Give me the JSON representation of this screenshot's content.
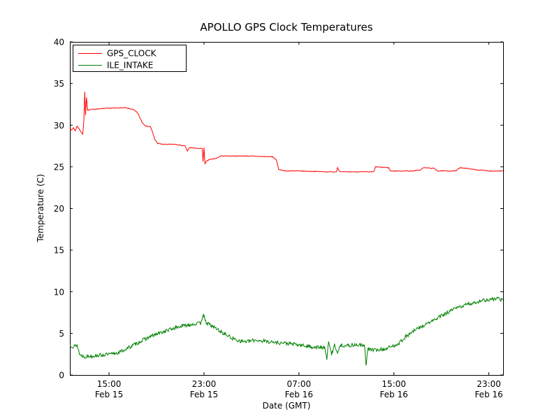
{
  "chart_data": {
    "type": "line",
    "title": "APOLLO GPS Clock Temperatures",
    "xlabel": "Date (GMT)",
    "ylabel": "Temperature (C)",
    "xlim": [
      11.7,
      48.2
    ],
    "ylim": [
      0,
      40
    ],
    "x_unit": "hours since Feb 15 00:00 GMT",
    "grid": false,
    "legend_position": "upper left",
    "yticks": [
      {
        "value": 0,
        "label": "0"
      },
      {
        "value": 5,
        "label": "5"
      },
      {
        "value": 10,
        "label": "10"
      },
      {
        "value": 15,
        "label": "15"
      },
      {
        "value": 20,
        "label": "20"
      },
      {
        "value": 25,
        "label": "25"
      },
      {
        "value": 30,
        "label": "30"
      },
      {
        "value": 35,
        "label": "35"
      },
      {
        "value": 40,
        "label": "40"
      }
    ],
    "xticks": [
      {
        "value": 15,
        "label": [
          "15:00",
          "Feb 15"
        ]
      },
      {
        "value": 23,
        "label": [
          "23:00",
          "Feb 15"
        ]
      },
      {
        "value": 31,
        "label": [
          "07:00",
          "Feb 16"
        ]
      },
      {
        "value": 39,
        "label": [
          "15:00",
          "Feb 16"
        ]
      },
      {
        "value": 47,
        "label": [
          "23:00",
          "Feb 16"
        ]
      }
    ],
    "series": [
      {
        "name": "GPS_CLOCK",
        "color": "#ff0000",
        "noise": 0.04,
        "seed": 7,
        "anchors": [
          [
            11.7,
            29.6
          ],
          [
            11.85,
            29.4
          ],
          [
            12.0,
            29.7
          ],
          [
            12.15,
            29.3
          ],
          [
            12.3,
            29.9
          ],
          [
            12.5,
            29.5
          ],
          [
            12.65,
            29.2
          ],
          [
            12.78,
            28.9
          ],
          [
            12.88,
            30.5
          ],
          [
            12.95,
            34.0
          ],
          [
            13.02,
            31.2
          ],
          [
            13.1,
            33.3
          ],
          [
            13.2,
            31.8
          ],
          [
            13.5,
            31.9
          ],
          [
            14.5,
            32.0
          ],
          [
            16.3,
            32.1
          ],
          [
            17.0,
            31.9
          ],
          [
            17.4,
            31.5
          ],
          [
            17.8,
            30.3
          ],
          [
            18.1,
            29.9
          ],
          [
            18.5,
            29.8
          ],
          [
            18.7,
            29.0
          ],
          [
            18.85,
            28.3
          ],
          [
            19.1,
            27.8
          ],
          [
            19.6,
            27.7
          ],
          [
            20.5,
            27.7
          ],
          [
            21.4,
            27.5
          ],
          [
            21.6,
            26.9
          ],
          [
            21.8,
            27.3
          ],
          [
            22.6,
            27.2
          ],
          [
            22.85,
            27.2
          ],
          [
            22.92,
            25.6
          ],
          [
            23.0,
            27.3
          ],
          [
            23.08,
            25.3
          ],
          [
            23.2,
            25.7
          ],
          [
            23.5,
            25.9
          ],
          [
            24.0,
            26.0
          ],
          [
            24.4,
            26.3
          ],
          [
            26.5,
            26.3
          ],
          [
            28.8,
            26.2
          ],
          [
            29.1,
            25.8
          ],
          [
            29.3,
            24.7
          ],
          [
            29.8,
            24.5
          ],
          [
            31.0,
            24.5
          ],
          [
            33.5,
            24.4
          ],
          [
            34.15,
            24.4
          ],
          [
            34.25,
            24.9
          ],
          [
            34.45,
            24.4
          ],
          [
            36.5,
            24.4
          ],
          [
            37.3,
            24.4
          ],
          [
            37.45,
            25.0
          ],
          [
            38.55,
            24.9
          ],
          [
            38.7,
            24.5
          ],
          [
            40.5,
            24.5
          ],
          [
            41.2,
            24.6
          ],
          [
            41.5,
            24.9
          ],
          [
            42.4,
            24.8
          ],
          [
            42.7,
            24.5
          ],
          [
            44.2,
            24.5
          ],
          [
            44.6,
            24.9
          ],
          [
            45.2,
            24.8
          ],
          [
            46.2,
            24.6
          ],
          [
            47.2,
            24.5
          ],
          [
            48.2,
            24.5
          ]
        ]
      },
      {
        "name": "ILE_INTAKE",
        "color": "#008000",
        "noise": 0.22,
        "seed": 13,
        "anchors": [
          [
            11.7,
            3.6
          ],
          [
            12.0,
            3.4
          ],
          [
            12.3,
            3.6
          ],
          [
            12.55,
            2.4
          ],
          [
            13.0,
            2.2
          ],
          [
            13.6,
            2.3
          ],
          [
            14.3,
            2.4
          ],
          [
            15.2,
            2.5
          ],
          [
            15.8,
            2.7
          ],
          [
            16.4,
            3.1
          ],
          [
            17.2,
            3.7
          ],
          [
            18.0,
            4.3
          ],
          [
            18.8,
            4.8
          ],
          [
            19.6,
            5.2
          ],
          [
            20.4,
            5.6
          ],
          [
            21.2,
            5.9
          ],
          [
            22.0,
            6.1
          ],
          [
            22.7,
            6.2
          ],
          [
            22.95,
            7.4
          ],
          [
            23.1,
            6.4
          ],
          [
            23.4,
            6.1
          ],
          [
            23.9,
            5.7
          ],
          [
            24.4,
            5.2
          ],
          [
            24.9,
            4.8
          ],
          [
            25.4,
            4.4
          ],
          [
            26.0,
            4.1
          ],
          [
            26.6,
            4.0
          ],
          [
            27.3,
            4.2
          ],
          [
            28.0,
            4.1
          ],
          [
            29.0,
            3.9
          ],
          [
            30.0,
            3.8
          ],
          [
            31.0,
            3.6
          ],
          [
            32.0,
            3.4
          ],
          [
            32.8,
            3.3
          ],
          [
            33.2,
            3.2
          ],
          [
            33.35,
            2.0
          ],
          [
            33.5,
            3.9
          ],
          [
            33.75,
            2.5
          ],
          [
            34.0,
            3.6
          ],
          [
            34.25,
            2.7
          ],
          [
            34.5,
            3.6
          ],
          [
            35.0,
            3.5
          ],
          [
            35.6,
            3.6
          ],
          [
            36.2,
            3.6
          ],
          [
            36.55,
            3.4
          ],
          [
            36.65,
            1.2
          ],
          [
            36.8,
            3.1
          ],
          [
            37.4,
            3.0
          ],
          [
            38.2,
            3.1
          ],
          [
            38.8,
            3.4
          ],
          [
            39.4,
            3.8
          ],
          [
            40.0,
            4.6
          ],
          [
            40.8,
            5.4
          ],
          [
            41.6,
            6.0
          ],
          [
            42.5,
            6.7
          ],
          [
            43.4,
            7.4
          ],
          [
            44.2,
            8.0
          ],
          [
            45.0,
            8.4
          ],
          [
            45.8,
            8.7
          ],
          [
            46.5,
            9.0
          ],
          [
            47.1,
            9.0
          ],
          [
            47.6,
            9.2
          ],
          [
            48.2,
            9.0
          ]
        ]
      }
    ]
  }
}
